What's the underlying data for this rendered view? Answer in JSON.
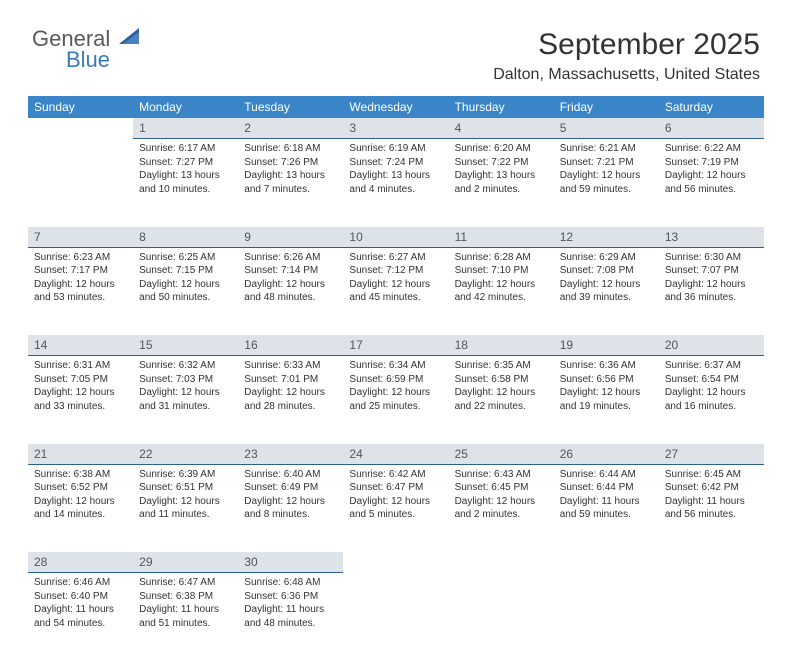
{
  "logo": {
    "line1": "General",
    "line2": "Blue",
    "general_color": "#5a5a5a",
    "blue_color": "#3a7ab8",
    "sail_color": "#2f5f9f"
  },
  "title": "September 2025",
  "location": "Dalton, Massachusetts, United States",
  "header_bg": "#3a85c7",
  "header_fg": "#ffffff",
  "daynum_bg": "#dde3e9",
  "daynum_border": "#2f5f8f",
  "columns": [
    "Sunday",
    "Monday",
    "Tuesday",
    "Wednesday",
    "Thursday",
    "Friday",
    "Saturday"
  ],
  "weeks": [
    {
      "nums": [
        "",
        "1",
        "2",
        "3",
        "4",
        "5",
        "6"
      ],
      "cells": [
        null,
        {
          "sunrise": "6:17 AM",
          "sunset": "7:27 PM",
          "daylight": "13 hours and 10 minutes."
        },
        {
          "sunrise": "6:18 AM",
          "sunset": "7:26 PM",
          "daylight": "13 hours and 7 minutes."
        },
        {
          "sunrise": "6:19 AM",
          "sunset": "7:24 PM",
          "daylight": "13 hours and 4 minutes."
        },
        {
          "sunrise": "6:20 AM",
          "sunset": "7:22 PM",
          "daylight": "13 hours and 2 minutes."
        },
        {
          "sunrise": "6:21 AM",
          "sunset": "7:21 PM",
          "daylight": "12 hours and 59 minutes."
        },
        {
          "sunrise": "6:22 AM",
          "sunset": "7:19 PM",
          "daylight": "12 hours and 56 minutes."
        }
      ]
    },
    {
      "nums": [
        "7",
        "8",
        "9",
        "10",
        "11",
        "12",
        "13"
      ],
      "cells": [
        {
          "sunrise": "6:23 AM",
          "sunset": "7:17 PM",
          "daylight": "12 hours and 53 minutes."
        },
        {
          "sunrise": "6:25 AM",
          "sunset": "7:15 PM",
          "daylight": "12 hours and 50 minutes."
        },
        {
          "sunrise": "6:26 AM",
          "sunset": "7:14 PM",
          "daylight": "12 hours and 48 minutes."
        },
        {
          "sunrise": "6:27 AM",
          "sunset": "7:12 PM",
          "daylight": "12 hours and 45 minutes."
        },
        {
          "sunrise": "6:28 AM",
          "sunset": "7:10 PM",
          "daylight": "12 hours and 42 minutes."
        },
        {
          "sunrise": "6:29 AM",
          "sunset": "7:08 PM",
          "daylight": "12 hours and 39 minutes."
        },
        {
          "sunrise": "6:30 AM",
          "sunset": "7:07 PM",
          "daylight": "12 hours and 36 minutes."
        }
      ]
    },
    {
      "nums": [
        "14",
        "15",
        "16",
        "17",
        "18",
        "19",
        "20"
      ],
      "cells": [
        {
          "sunrise": "6:31 AM",
          "sunset": "7:05 PM",
          "daylight": "12 hours and 33 minutes."
        },
        {
          "sunrise": "6:32 AM",
          "sunset": "7:03 PM",
          "daylight": "12 hours and 31 minutes."
        },
        {
          "sunrise": "6:33 AM",
          "sunset": "7:01 PM",
          "daylight": "12 hours and 28 minutes."
        },
        {
          "sunrise": "6:34 AM",
          "sunset": "6:59 PM",
          "daylight": "12 hours and 25 minutes."
        },
        {
          "sunrise": "6:35 AM",
          "sunset": "6:58 PM",
          "daylight": "12 hours and 22 minutes."
        },
        {
          "sunrise": "6:36 AM",
          "sunset": "6:56 PM",
          "daylight": "12 hours and 19 minutes."
        },
        {
          "sunrise": "6:37 AM",
          "sunset": "6:54 PM",
          "daylight": "12 hours and 16 minutes."
        }
      ]
    },
    {
      "nums": [
        "21",
        "22",
        "23",
        "24",
        "25",
        "26",
        "27"
      ],
      "cells": [
        {
          "sunrise": "6:38 AM",
          "sunset": "6:52 PM",
          "daylight": "12 hours and 14 minutes."
        },
        {
          "sunrise": "6:39 AM",
          "sunset": "6:51 PM",
          "daylight": "12 hours and 11 minutes."
        },
        {
          "sunrise": "6:40 AM",
          "sunset": "6:49 PM",
          "daylight": "12 hours and 8 minutes."
        },
        {
          "sunrise": "6:42 AM",
          "sunset": "6:47 PM",
          "daylight": "12 hours and 5 minutes."
        },
        {
          "sunrise": "6:43 AM",
          "sunset": "6:45 PM",
          "daylight": "12 hours and 2 minutes."
        },
        {
          "sunrise": "6:44 AM",
          "sunset": "6:44 PM",
          "daylight": "11 hours and 59 minutes."
        },
        {
          "sunrise": "6:45 AM",
          "sunset": "6:42 PM",
          "daylight": "11 hours and 56 minutes."
        }
      ]
    },
    {
      "nums": [
        "28",
        "29",
        "30",
        "",
        "",
        "",
        ""
      ],
      "cells": [
        {
          "sunrise": "6:46 AM",
          "sunset": "6:40 PM",
          "daylight": "11 hours and 54 minutes."
        },
        {
          "sunrise": "6:47 AM",
          "sunset": "6:38 PM",
          "daylight": "11 hours and 51 minutes."
        },
        {
          "sunrise": "6:48 AM",
          "sunset": "6:36 PM",
          "daylight": "11 hours and 48 minutes."
        },
        null,
        null,
        null,
        null
      ]
    }
  ],
  "labels": {
    "sunrise": "Sunrise:",
    "sunset": "Sunset:",
    "daylight": "Daylight:"
  }
}
